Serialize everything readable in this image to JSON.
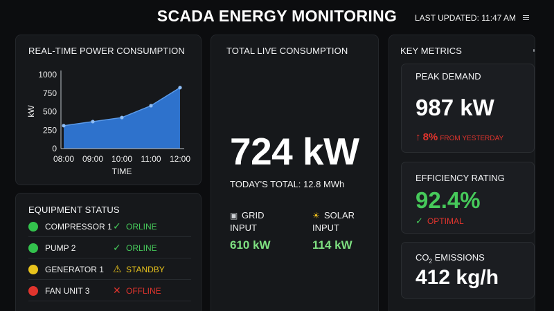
{
  "header": {
    "title": "SCADA ENERGY MONITORING",
    "last_updated": "LAST UPDATED: 11:47 AM",
    "menu_icon": "hamburger-icon"
  },
  "power_chart": {
    "title": "REAL-TIME POWER CONSUMPTION"
  },
  "chart_data": {
    "type": "area",
    "title": "REAL-TIME POWER CONSUMPTION",
    "x": [
      "08:00",
      "09:00",
      "10:00",
      "11:00",
      "12:00"
    ],
    "values": [
      310,
      365,
      420,
      580,
      825
    ],
    "xlabel": "TIME",
    "ylabel": "kW",
    "yticks": [
      "0",
      "250",
      "500",
      "750",
      "1000"
    ],
    "ylim": [
      0,
      1000
    ],
    "grid": false,
    "fill_color": "#2f77d6",
    "line_color": "#5b9bea"
  },
  "equipment": {
    "title": "EQUIPMENT STATUS",
    "items": [
      {
        "name": "COMPRESSOR 1",
        "status": "ORLINE",
        "dot_color": "#33c24d",
        "status_color": "#46c95a",
        "icon": "✓",
        "icon_name": "check-icon"
      },
      {
        "name": "PUMP 2",
        "status": "ORLINE",
        "dot_color": "#33c24d",
        "status_color": "#46c95a",
        "icon": "✓",
        "icon_name": "check-icon"
      },
      {
        "name": "GENERATOR 1",
        "status": "STANDBY",
        "dot_color": "#e8c31c",
        "status_color": "#e8c31c",
        "icon": "⚠",
        "icon_name": "warning-icon"
      },
      {
        "name": "FAN UNIT 3",
        "status": "OFFLINE",
        "dot_color": "#e0342d",
        "status_color": "#e0342d",
        "icon": "✕",
        "icon_name": "cross-icon"
      }
    ]
  },
  "total": {
    "title": "TOTAL LIVE CONSUMPTION",
    "value": "724 kW",
    "today": "TODAY'S TOTAL: 12.8 MWh",
    "grid": {
      "icon_name": "plug-icon",
      "icon": "▣",
      "label_line1": "GRID",
      "label_line2": "INPUT",
      "value": "610 kW"
    },
    "solar": {
      "icon_name": "sun-icon",
      "icon": "☀",
      "label_line1": "SOLAR",
      "label_line2": "INPUT",
      "value": "114 kW"
    }
  },
  "metrics": {
    "title": "KEY METRICS",
    "peak": {
      "title": "PEAK DEMAND",
      "value": "987 kW",
      "change": "8%",
      "change_note": "FROM YESTERDAY",
      "color": "#e0342d"
    },
    "efficiency": {
      "title": "EFFICIENCY RATING",
      "value": "92.4%",
      "note": "OPTIMAL",
      "color": "#46c95a"
    },
    "emissions": {
      "title_prefix": "CO",
      "title_sub": "2",
      "title_suffix": " EMISSIONS",
      "value": "412 kg/h"
    }
  }
}
